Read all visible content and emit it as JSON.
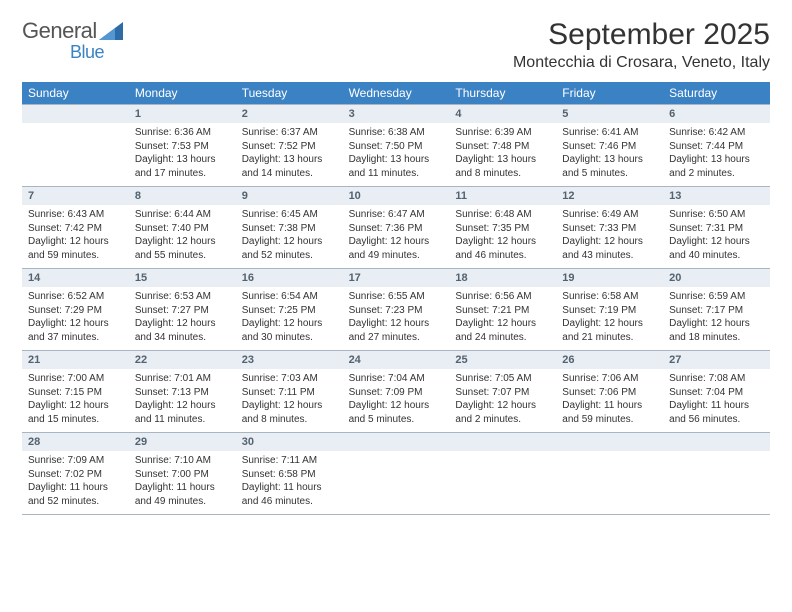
{
  "logo": {
    "text1": "General",
    "text2": "Blue"
  },
  "title": "September 2025",
  "location": "Montecchia di Crosara, Veneto, Italy",
  "colors": {
    "header_bg": "#3b82c4",
    "header_text": "#ffffff",
    "daynum_bg": "#e8eef3",
    "daynum_text": "#546270",
    "border": "#a9b6c2",
    "body_text": "#333333"
  },
  "day_names": [
    "Sunday",
    "Monday",
    "Tuesday",
    "Wednesday",
    "Thursday",
    "Friday",
    "Saturday"
  ],
  "weeks": [
    [
      {
        "num": "",
        "lines": []
      },
      {
        "num": "1",
        "lines": [
          "Sunrise: 6:36 AM",
          "Sunset: 7:53 PM",
          "Daylight: 13 hours",
          "and 17 minutes."
        ]
      },
      {
        "num": "2",
        "lines": [
          "Sunrise: 6:37 AM",
          "Sunset: 7:52 PM",
          "Daylight: 13 hours",
          "and 14 minutes."
        ]
      },
      {
        "num": "3",
        "lines": [
          "Sunrise: 6:38 AM",
          "Sunset: 7:50 PM",
          "Daylight: 13 hours",
          "and 11 minutes."
        ]
      },
      {
        "num": "4",
        "lines": [
          "Sunrise: 6:39 AM",
          "Sunset: 7:48 PM",
          "Daylight: 13 hours",
          "and 8 minutes."
        ]
      },
      {
        "num": "5",
        "lines": [
          "Sunrise: 6:41 AM",
          "Sunset: 7:46 PM",
          "Daylight: 13 hours",
          "and 5 minutes."
        ]
      },
      {
        "num": "6",
        "lines": [
          "Sunrise: 6:42 AM",
          "Sunset: 7:44 PM",
          "Daylight: 13 hours",
          "and 2 minutes."
        ]
      }
    ],
    [
      {
        "num": "7",
        "lines": [
          "Sunrise: 6:43 AM",
          "Sunset: 7:42 PM",
          "Daylight: 12 hours",
          "and 59 minutes."
        ]
      },
      {
        "num": "8",
        "lines": [
          "Sunrise: 6:44 AM",
          "Sunset: 7:40 PM",
          "Daylight: 12 hours",
          "and 55 minutes."
        ]
      },
      {
        "num": "9",
        "lines": [
          "Sunrise: 6:45 AM",
          "Sunset: 7:38 PM",
          "Daylight: 12 hours",
          "and 52 minutes."
        ]
      },
      {
        "num": "10",
        "lines": [
          "Sunrise: 6:47 AM",
          "Sunset: 7:36 PM",
          "Daylight: 12 hours",
          "and 49 minutes."
        ]
      },
      {
        "num": "11",
        "lines": [
          "Sunrise: 6:48 AM",
          "Sunset: 7:35 PM",
          "Daylight: 12 hours",
          "and 46 minutes."
        ]
      },
      {
        "num": "12",
        "lines": [
          "Sunrise: 6:49 AM",
          "Sunset: 7:33 PM",
          "Daylight: 12 hours",
          "and 43 minutes."
        ]
      },
      {
        "num": "13",
        "lines": [
          "Sunrise: 6:50 AM",
          "Sunset: 7:31 PM",
          "Daylight: 12 hours",
          "and 40 minutes."
        ]
      }
    ],
    [
      {
        "num": "14",
        "lines": [
          "Sunrise: 6:52 AM",
          "Sunset: 7:29 PM",
          "Daylight: 12 hours",
          "and 37 minutes."
        ]
      },
      {
        "num": "15",
        "lines": [
          "Sunrise: 6:53 AM",
          "Sunset: 7:27 PM",
          "Daylight: 12 hours",
          "and 34 minutes."
        ]
      },
      {
        "num": "16",
        "lines": [
          "Sunrise: 6:54 AM",
          "Sunset: 7:25 PM",
          "Daylight: 12 hours",
          "and 30 minutes."
        ]
      },
      {
        "num": "17",
        "lines": [
          "Sunrise: 6:55 AM",
          "Sunset: 7:23 PM",
          "Daylight: 12 hours",
          "and 27 minutes."
        ]
      },
      {
        "num": "18",
        "lines": [
          "Sunrise: 6:56 AM",
          "Sunset: 7:21 PM",
          "Daylight: 12 hours",
          "and 24 minutes."
        ]
      },
      {
        "num": "19",
        "lines": [
          "Sunrise: 6:58 AM",
          "Sunset: 7:19 PM",
          "Daylight: 12 hours",
          "and 21 minutes."
        ]
      },
      {
        "num": "20",
        "lines": [
          "Sunrise: 6:59 AM",
          "Sunset: 7:17 PM",
          "Daylight: 12 hours",
          "and 18 minutes."
        ]
      }
    ],
    [
      {
        "num": "21",
        "lines": [
          "Sunrise: 7:00 AM",
          "Sunset: 7:15 PM",
          "Daylight: 12 hours",
          "and 15 minutes."
        ]
      },
      {
        "num": "22",
        "lines": [
          "Sunrise: 7:01 AM",
          "Sunset: 7:13 PM",
          "Daylight: 12 hours",
          "and 11 minutes."
        ]
      },
      {
        "num": "23",
        "lines": [
          "Sunrise: 7:03 AM",
          "Sunset: 7:11 PM",
          "Daylight: 12 hours",
          "and 8 minutes."
        ]
      },
      {
        "num": "24",
        "lines": [
          "Sunrise: 7:04 AM",
          "Sunset: 7:09 PM",
          "Daylight: 12 hours",
          "and 5 minutes."
        ]
      },
      {
        "num": "25",
        "lines": [
          "Sunrise: 7:05 AM",
          "Sunset: 7:07 PM",
          "Daylight: 12 hours",
          "and 2 minutes."
        ]
      },
      {
        "num": "26",
        "lines": [
          "Sunrise: 7:06 AM",
          "Sunset: 7:06 PM",
          "Daylight: 11 hours",
          "and 59 minutes."
        ]
      },
      {
        "num": "27",
        "lines": [
          "Sunrise: 7:08 AM",
          "Sunset: 7:04 PM",
          "Daylight: 11 hours",
          "and 56 minutes."
        ]
      }
    ],
    [
      {
        "num": "28",
        "lines": [
          "Sunrise: 7:09 AM",
          "Sunset: 7:02 PM",
          "Daylight: 11 hours",
          "and 52 minutes."
        ]
      },
      {
        "num": "29",
        "lines": [
          "Sunrise: 7:10 AM",
          "Sunset: 7:00 PM",
          "Daylight: 11 hours",
          "and 49 minutes."
        ]
      },
      {
        "num": "30",
        "lines": [
          "Sunrise: 7:11 AM",
          "Sunset: 6:58 PM",
          "Daylight: 11 hours",
          "and 46 minutes."
        ]
      },
      {
        "num": "",
        "lines": []
      },
      {
        "num": "",
        "lines": []
      },
      {
        "num": "",
        "lines": []
      },
      {
        "num": "",
        "lines": []
      }
    ]
  ]
}
